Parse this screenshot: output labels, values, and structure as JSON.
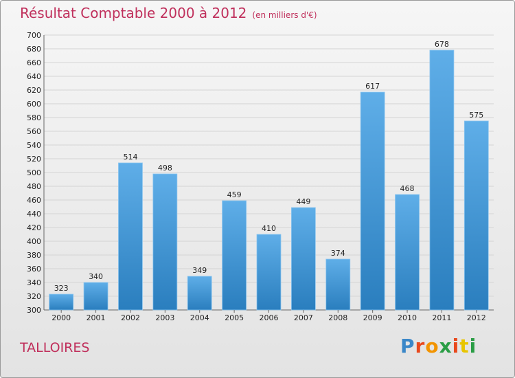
{
  "title": "Résultat Comptable 2000 à 2012",
  "subtitle": "(en milliers d'€)",
  "city": "TALLOIRES",
  "logo": {
    "text": "Proxiti",
    "letter_colors": [
      "#3a87c8",
      "#e8491d",
      "#f29400",
      "#2a9d45",
      "#e8491d",
      "#e8c500",
      "#2a9d45"
    ]
  },
  "colors": {
    "title": "#c0305c",
    "bar_top": "#5faee8",
    "bar_bottom": "#2a7ebe",
    "grid": "#d4d4d4",
    "axis_text": "#222222"
  },
  "chart_data": {
    "type": "bar",
    "title": "Résultat Comptable 2000 à 2012",
    "subtitle": "(en milliers d'€)",
    "categories": [
      "2000",
      "2001",
      "2002",
      "2003",
      "2004",
      "2005",
      "2006",
      "2007",
      "2008",
      "2009",
      "2010",
      "2011",
      "2012"
    ],
    "values": [
      323,
      340,
      514,
      498,
      349,
      459,
      410,
      449,
      374,
      617,
      468,
      678,
      575
    ],
    "ylim": [
      300,
      700
    ],
    "ytick_step": 20,
    "grid": true,
    "show_data_labels": true
  }
}
